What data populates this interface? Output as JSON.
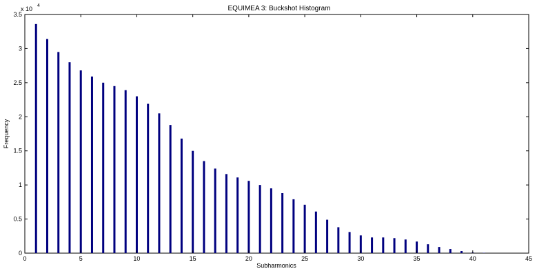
{
  "chart_data": {
    "type": "bar",
    "title": "EQUIMEA 3: Buckshot Histogram",
    "xlabel": "Subharmonics",
    "ylabel": "Frequency",
    "y_exponent_label": "x 10",
    "y_exponent_power": "4",
    "xlim": [
      0,
      45
    ],
    "ylim": [
      0,
      35000
    ],
    "x_ticks": [
      0,
      5,
      10,
      15,
      20,
      25,
      30,
      35,
      40,
      45
    ],
    "x_tick_labels": [
      "0",
      "5",
      "10",
      "15",
      "20",
      "25",
      "30",
      "35",
      "40",
      "45"
    ],
    "y_ticks": [
      0,
      5000,
      10000,
      15000,
      20000,
      25000,
      30000,
      35000
    ],
    "y_tick_labels": [
      "0",
      "0.5",
      "1",
      "1.5",
      "2",
      "2.5",
      "3",
      "3.5"
    ],
    "grid": false,
    "bar_color": "#00007f",
    "x": [
      1,
      2,
      3,
      4,
      5,
      6,
      7,
      8,
      9,
      10,
      11,
      12,
      13,
      14,
      15,
      16,
      17,
      18,
      19,
      20,
      21,
      22,
      23,
      24,
      25,
      26,
      27,
      28,
      29,
      30,
      31,
      32,
      33,
      34,
      35,
      36,
      37,
      38,
      39,
      40,
      41
    ],
    "values": [
      33600,
      31400,
      29500,
      28000,
      26800,
      25900,
      25000,
      24500,
      23900,
      23000,
      21900,
      20500,
      18800,
      16800,
      15000,
      13500,
      12400,
      11600,
      11100,
      10600,
      10000,
      9500,
      8800,
      7900,
      7100,
      6100,
      4900,
      3800,
      3100,
      2600,
      2300,
      2300,
      2200,
      2000,
      1700,
      1300,
      900,
      600,
      300,
      100,
      50
    ]
  }
}
